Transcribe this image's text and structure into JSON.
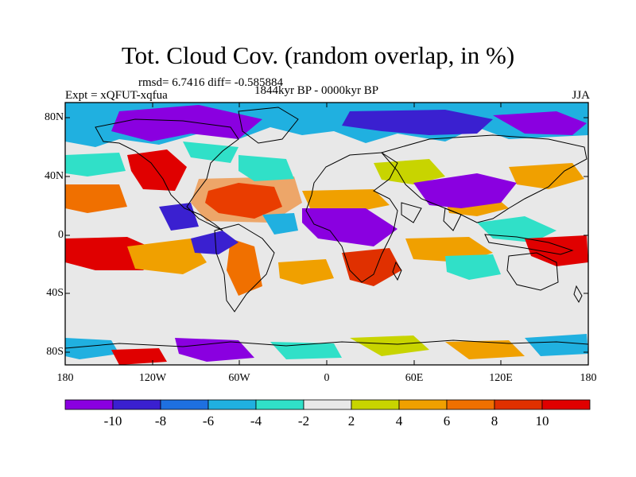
{
  "title": "Tot. Cloud Cov. (random overlap, in %)",
  "stats": "rmsd= 6.7416 diff= -0.585884",
  "experiment": "Expt = xQFUT-xqfua",
  "period": "1844kyr BP - 0000kyr BP",
  "season": "JJA",
  "axes": {
    "lat_ticks": [
      "80N",
      "40N",
      "0",
      "40S",
      "80S"
    ],
    "lon_ticks": [
      "180",
      "120W",
      "60W",
      "0",
      "60E",
      "120E",
      "180"
    ]
  },
  "colorbar": {
    "labels": [
      "-10",
      "-8",
      "-6",
      "-4",
      "-2",
      "2",
      "4",
      "6",
      "8",
      "10"
    ],
    "colors": [
      "#8a00e0",
      "#3a20d0",
      "#1e70e0",
      "#20b0e0",
      "#30e0c8",
      "#e8e8e8",
      "#c8d400",
      "#f0a000",
      "#f07000",
      "#e03000",
      "#e00000"
    ]
  }
}
